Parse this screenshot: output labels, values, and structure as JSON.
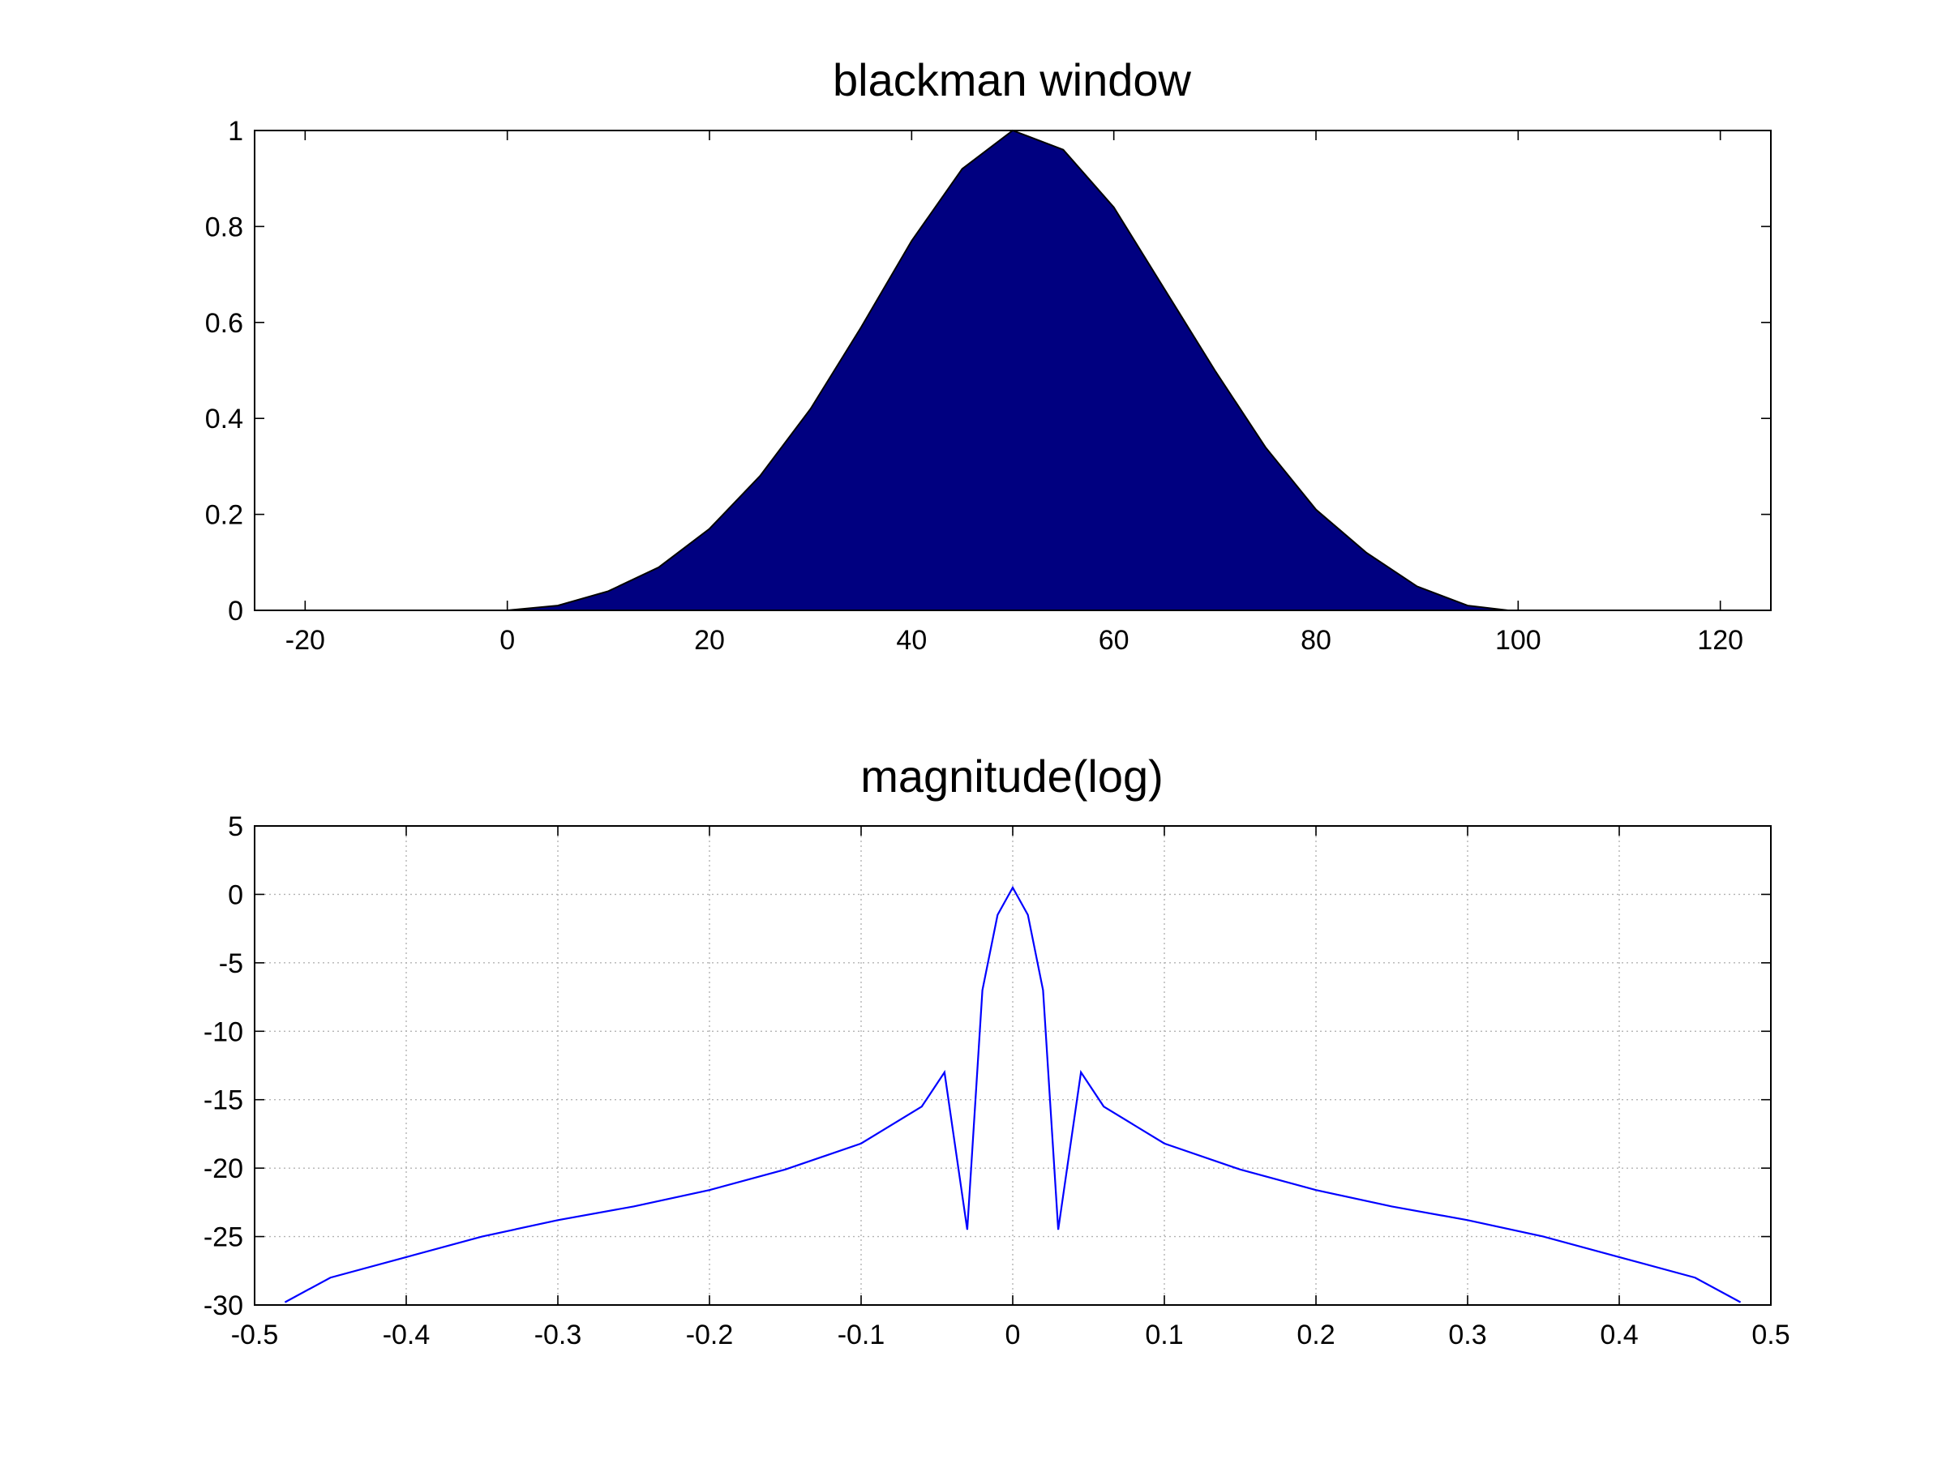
{
  "chart_data": [
    {
      "type": "area",
      "title": "blackman window",
      "xlabel": "",
      "ylabel": "",
      "xlim": [
        -25,
        125
      ],
      "ylim": [
        0,
        1
      ],
      "grid": false,
      "x_ticks": [
        -20,
        0,
        20,
        40,
        60,
        80,
        100,
        120
      ],
      "y_ticks": [
        0,
        0.2,
        0.4,
        0.6,
        0.8,
        1
      ],
      "x_tick_labels": [
        "-20",
        "0",
        "20",
        "40",
        "60",
        "80",
        "100",
        "120"
      ],
      "y_tick_labels": [
        "0",
        "0.2",
        "0.4",
        "0.6",
        "0.8",
        "1"
      ],
      "fill_color": "#000080",
      "edge_color": "#000000",
      "series": [
        {
          "x": [
            0,
            5,
            10,
            15,
            20,
            25,
            30,
            35,
            40,
            45,
            50,
            55,
            60,
            65,
            70,
            75,
            80,
            85,
            90,
            95,
            99
          ],
          "values": [
            0,
            0.01,
            0.04,
            0.09,
            0.17,
            0.28,
            0.42,
            0.59,
            0.77,
            0.92,
            1.0,
            0.96,
            0.84,
            0.67,
            0.5,
            0.34,
            0.21,
            0.12,
            0.05,
            0.01,
            0
          ]
        }
      ]
    },
    {
      "type": "line",
      "title": "magnitude(log)",
      "xlabel": "",
      "ylabel": "",
      "xlim": [
        -0.5,
        0.5
      ],
      "ylim": [
        -30,
        5
      ],
      "grid": true,
      "x_ticks": [
        -0.5,
        -0.4,
        -0.3,
        -0.2,
        -0.1,
        0,
        0.1,
        0.2,
        0.3,
        0.4,
        0.5
      ],
      "y_ticks": [
        -30,
        -25,
        -20,
        -15,
        -10,
        -5,
        0,
        5
      ],
      "x_tick_labels": [
        "-0.5",
        "-0.4",
        "-0.3",
        "-0.2",
        "-0.1",
        "0",
        "0.1",
        "0.2",
        "0.3",
        "0.4",
        "0.5"
      ],
      "y_tick_labels": [
        "-30",
        "-25",
        "-20",
        "-15",
        "-10",
        "-5",
        "0",
        "5"
      ],
      "line_color": "#0000ff",
      "series": [
        {
          "x": [
            -0.48,
            -0.45,
            -0.4,
            -0.35,
            -0.3,
            -0.25,
            -0.2,
            -0.15,
            -0.1,
            -0.06,
            -0.045,
            -0.03,
            -0.02,
            -0.01,
            0,
            0.01,
            0.02,
            0.03,
            0.045,
            0.06,
            0.1,
            0.15,
            0.2,
            0.25,
            0.3,
            0.35,
            0.4,
            0.45,
            0.48
          ],
          "values": [
            -29.8,
            -28.0,
            -26.5,
            -25.0,
            -23.8,
            -22.8,
            -21.6,
            -20.1,
            -18.2,
            -15.5,
            -13.0,
            -24.5,
            -7.0,
            -1.5,
            0.5,
            -1.5,
            -7.0,
            -24.5,
            -13.0,
            -15.5,
            -18.2,
            -20.1,
            -21.6,
            -22.8,
            -23.8,
            -25.0,
            -26.5,
            -28.0,
            -29.8
          ]
        }
      ]
    }
  ]
}
